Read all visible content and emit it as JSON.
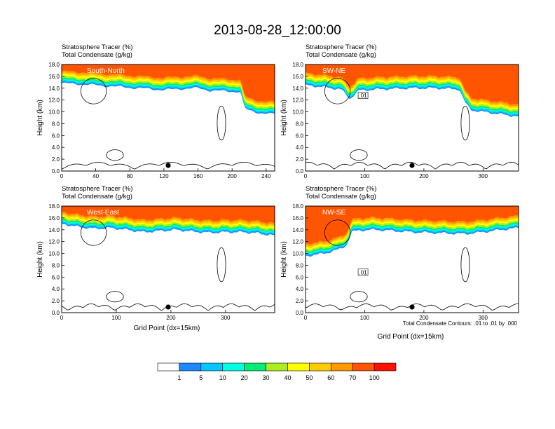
{
  "figure": {
    "title": "2013-08-28_12:00:00",
    "contour_note": "Total Condensate Contours: .01 to .01 by .000",
    "x_axis_label": "Grid Point (dx=15km)",
    "y_axis_label": "Height (km)",
    "sub_label_tracer": "Stratosphere Tracer   (%)",
    "sub_label_condensate": "Total Condensate   (g/kg)"
  },
  "colors": {
    "levels": [
      "#ffffff",
      "#1e88ff",
      "#00c8ff",
      "#00ffe0",
      "#00ee77",
      "#00dd00",
      "#aaee22",
      "#ffff00",
      "#ffcc00",
      "#ff9900",
      "#ff5500",
      "#ff1100"
    ],
    "stratosphere_fill": "#ff1100",
    "contour": "#000000"
  },
  "colorbar": {
    "labels": [
      "1",
      "5",
      "10",
      "20",
      "30",
      "40",
      "50",
      "60",
      "70",
      "100"
    ]
  },
  "chart_data": [
    {
      "type": "heatmap",
      "name": "South-North",
      "title_labels": [
        "Stratosphere Tracer   (%)",
        "Total Condensate   (g/kg)"
      ],
      "ylabel": "Height (km)",
      "xlabel": "",
      "xlim": [
        0,
        250
      ],
      "ylim": [
        0,
        18
      ],
      "xticks": [
        "0",
        "40",
        "80",
        "120",
        "160",
        "200",
        "240"
      ],
      "yticks": [
        "0.0",
        "2.0",
        "4.0",
        "6.0",
        "8.0",
        "10.0",
        "12.0",
        "14.0",
        "16.0",
        "18.0"
      ],
      "tropopause_x": [
        0,
        20,
        40,
        60,
        80,
        100,
        120,
        140,
        160,
        175,
        190,
        210,
        212,
        215,
        220,
        230,
        240,
        250
      ],
      "tropopause_km": [
        14.8,
        14.7,
        14.5,
        14.3,
        14.1,
        13.9,
        13.7,
        13.9,
        14.0,
        13.6,
        13.5,
        13.4,
        12.0,
        10.6,
        10.2,
        9.9,
        9.7,
        9.6
      ],
      "contour_annotation": "",
      "marker_x": 125
    },
    {
      "type": "heatmap",
      "name": "SW-NE",
      "title_labels": [
        "Stratosphere Tracer   (%)",
        "Total Condensate   (g/kg)"
      ],
      "ylabel": "Height (km)",
      "xlabel": "",
      "xlim": [
        0,
        360
      ],
      "ylim": [
        0,
        18
      ],
      "xticks": [
        "0",
        "100",
        "200",
        "300"
      ],
      "yticks": [
        "0.0",
        "2.0",
        "4.0",
        "6.0",
        "8.0",
        "10.0",
        "12.0",
        "14.0",
        "16.0",
        "18.0"
      ],
      "tropopause_x": [
        0,
        30,
        60,
        75,
        90,
        120,
        150,
        180,
        220,
        260,
        270,
        280,
        300,
        330,
        360
      ],
      "tropopause_km": [
        14.5,
        14.2,
        13.8,
        12.2,
        13.6,
        13.8,
        13.9,
        14.0,
        14.0,
        13.8,
        11.5,
        10.3,
        10.0,
        9.6,
        9.2
      ],
      "contour_annotation": ".01",
      "marker_x": 180
    },
    {
      "type": "heatmap",
      "name": "West-East",
      "title_labels": [
        "Stratosphere Tracer   (%)",
        "Total Condensate   (g/kg)"
      ],
      "ylabel": "Height (km)",
      "xlabel": "Grid Point (dx=15km)",
      "xlim": [
        0,
        390
      ],
      "ylim": [
        0,
        18
      ],
      "xticks": [
        "0",
        "100",
        "200",
        "300"
      ],
      "yticks": [
        "0.0",
        "2.0",
        "4.0",
        "6.0",
        "8.0",
        "10.0",
        "12.0",
        "14.0",
        "16.0",
        "18.0"
      ],
      "tropopause_x": [
        0,
        30,
        60,
        90,
        120,
        150,
        180,
        210,
        240,
        270,
        300,
        330,
        360,
        390
      ],
      "tropopause_km": [
        15.0,
        14.5,
        14.2,
        14.3,
        14.0,
        13.6,
        13.8,
        14.0,
        13.7,
        13.5,
        13.6,
        13.6,
        13.4,
        13.0
      ],
      "contour_annotation": "",
      "marker_x": 195
    },
    {
      "type": "heatmap",
      "name": "NW-SE",
      "title_labels": [
        "Stratosphere Tracer   (%)",
        "Total Condensate   (g/kg)"
      ],
      "ylabel": "Height (km)",
      "xlabel": "Grid Point (dx=15km)",
      "xlim": [
        0,
        360
      ],
      "ylim": [
        0,
        18
      ],
      "xticks": [
        "0",
        "100",
        "200",
        "300"
      ],
      "yticks": [
        "0.0",
        "2.0",
        "4.0",
        "6.0",
        "8.0",
        "10.0",
        "12.0",
        "14.0",
        "16.0",
        "18.0"
      ],
      "tropopause_x": [
        0,
        20,
        40,
        60,
        70,
        78,
        90,
        120,
        150,
        180,
        210,
        240,
        270,
        300,
        330,
        360
      ],
      "tropopause_km": [
        9.6,
        9.8,
        10.2,
        10.8,
        11.5,
        13.6,
        13.9,
        14.0,
        13.8,
        13.6,
        13.5,
        13.4,
        13.3,
        13.6,
        14.0,
        14.3
      ],
      "contour_annotation": ".01",
      "marker_x": 180
    }
  ]
}
